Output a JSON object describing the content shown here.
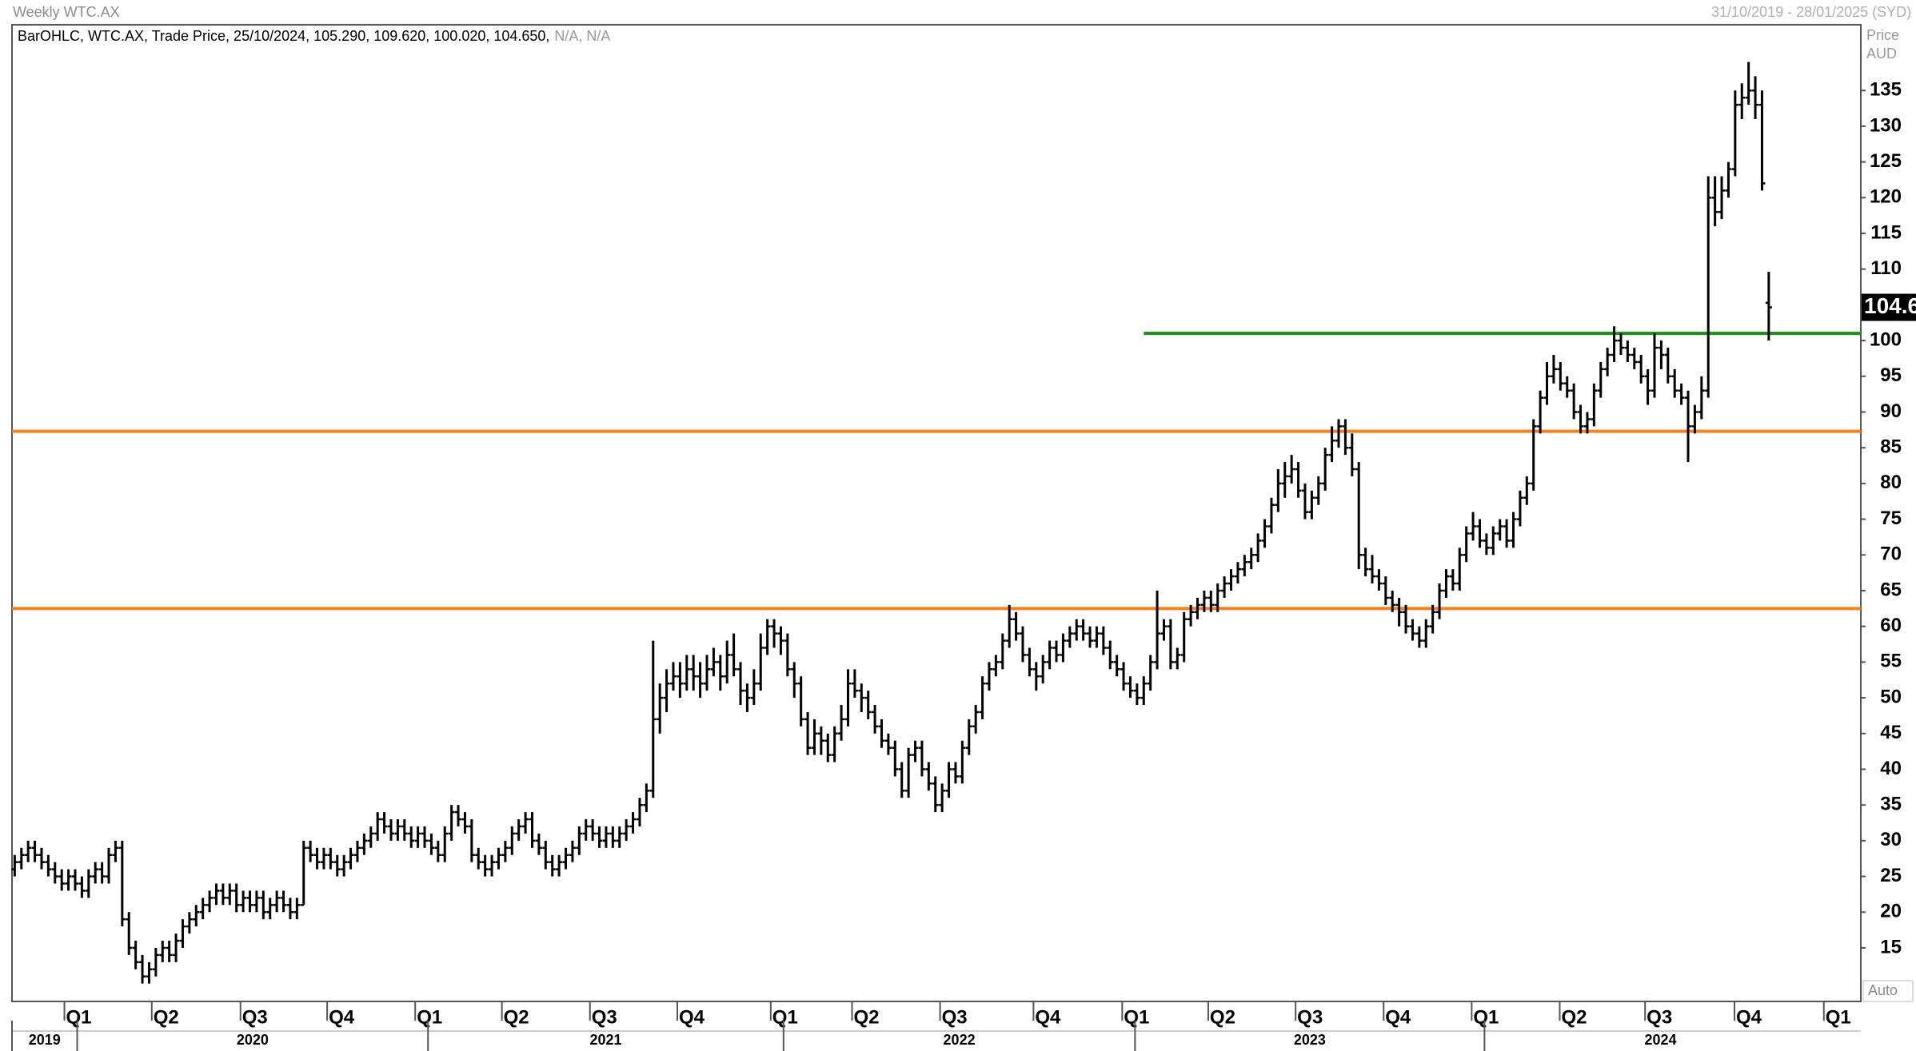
{
  "chart_data": {
    "type": "ohlc",
    "title": "Weekly WTC.AX",
    "date_range": "31/10/2019 - 28/01/2025 (SYD)",
    "legend": "BarOHLC, WTC.AX, Trade Price, 25/10/2024, 105.290, 109.620, 100.020, 104.650,",
    "legend_na": "N/A, N/A",
    "y_axis_label": "Price",
    "y_axis_unit": "AUD",
    "scale_mode": "Auto",
    "color": "#000000",
    "xlim": [
      -0.4,
      274.7
    ],
    "ylim": [
      7.5,
      144.2
    ],
    "yticks": [
      15,
      20,
      25,
      30,
      35,
      40,
      45,
      50,
      55,
      60,
      65,
      70,
      75,
      80,
      85,
      90,
      95,
      100,
      105,
      110,
      115,
      120,
      125,
      130,
      135
    ],
    "xticks": [
      {
        "value": 9.3,
        "label": "Q1"
      },
      {
        "value": 22.3,
        "label": "Q2"
      },
      {
        "value": 35.5,
        "label": "Q3"
      },
      {
        "value": 48.4,
        "label": "Q4"
      },
      {
        "value": 61.5,
        "label": "Q1"
      },
      {
        "value": 74.4,
        "label": "Q2"
      },
      {
        "value": 87.5,
        "label": "Q3"
      },
      {
        "value": 100.5,
        "label": "Q4"
      },
      {
        "value": 114.4,
        "label": "Q1"
      },
      {
        "value": 126.5,
        "label": "Q2"
      },
      {
        "value": 139.6,
        "label": "Q3"
      },
      {
        "value": 153.5,
        "label": "Q4"
      },
      {
        "value": 166.7,
        "label": "Q1"
      },
      {
        "value": 179.5,
        "label": "Q2"
      },
      {
        "value": 192.5,
        "label": "Q3"
      },
      {
        "value": 205.6,
        "label": "Q4"
      },
      {
        "value": 218.7,
        "label": "Q1"
      },
      {
        "value": 231.8,
        "label": "Q2"
      },
      {
        "value": 244.5,
        "label": "Q3"
      },
      {
        "value": 257.8,
        "label": "Q4"
      },
      {
        "value": 271.1,
        "label": "Q1"
      }
    ],
    "year_ticks": [
      {
        "value": -0.4,
        "label": "2019"
      },
      {
        "value": 9.3,
        "label": "2020"
      },
      {
        "value": 61.5,
        "label": "2021"
      },
      {
        "value": 114.4,
        "label": "2022"
      },
      {
        "value": 166.7,
        "label": "2023"
      },
      {
        "value": 218.7,
        "label": "2024"
      }
    ],
    "hlines": [
      {
        "value": 87.3,
        "color": "#f5821f"
      },
      {
        "value": 62.5,
        "color": "#f5821f"
      },
      {
        "value": 101,
        "color": "#1e8c1e",
        "start": 168
      }
    ],
    "ohlc": [
      [
        26,
        28,
        25,
        27
      ],
      [
        27,
        29,
        26,
        28
      ],
      [
        28,
        30,
        27,
        29
      ],
      [
        29,
        30,
        27,
        28
      ],
      [
        28,
        29,
        26,
        27
      ],
      [
        27,
        28,
        25,
        26
      ],
      [
        26,
        27,
        24,
        25
      ],
      [
        25,
        26,
        23,
        24
      ],
      [
        24,
        26,
        23,
        25
      ],
      [
        25,
        26,
        23,
        24
      ],
      [
        24,
        25,
        22,
        23
      ],
      [
        23,
        26,
        22,
        25
      ],
      [
        25,
        27,
        24,
        26
      ],
      [
        26,
        27,
        24,
        25
      ],
      [
        25,
        29,
        24,
        28
      ],
      [
        28,
        30,
        27,
        29
      ],
      [
        29,
        30,
        18,
        19
      ],
      [
        19,
        20,
        14,
        15
      ],
      [
        15,
        16,
        12,
        13
      ],
      [
        13,
        14,
        10,
        11
      ],
      [
        11,
        13,
        10,
        12
      ],
      [
        12,
        15,
        11,
        14
      ],
      [
        14,
        16,
        13,
        15
      ],
      [
        15,
        16,
        13,
        14
      ],
      [
        14,
        17,
        13,
        16
      ],
      [
        16,
        19,
        15,
        18
      ],
      [
        18,
        20,
        17,
        19
      ],
      [
        19,
        21,
        18,
        20
      ],
      [
        20,
        22,
        19,
        21
      ],
      [
        21,
        23,
        20,
        22
      ],
      [
        22,
        24,
        21,
        23
      ],
      [
        23,
        24,
        21,
        22
      ],
      [
        22,
        24,
        21,
        23
      ],
      [
        23,
        24,
        20,
        21
      ],
      [
        21,
        23,
        20,
        22
      ],
      [
        22,
        23,
        20,
        21
      ],
      [
        21,
        23,
        20,
        22
      ],
      [
        22,
        23,
        19,
        20
      ],
      [
        20,
        22,
        19,
        21
      ],
      [
        21,
        23,
        20,
        22
      ],
      [
        22,
        23,
        20,
        21
      ],
      [
        21,
        22,
        19,
        20
      ],
      [
        20,
        22,
        19,
        21
      ],
      [
        21,
        30,
        21,
        29
      ],
      [
        29,
        30,
        27,
        28
      ],
      [
        28,
        29,
        26,
        27
      ],
      [
        27,
        29,
        26,
        28
      ],
      [
        28,
        29,
        26,
        27
      ],
      [
        27,
        28,
        25,
        26
      ],
      [
        26,
        28,
        25,
        27
      ],
      [
        27,
        29,
        26,
        28
      ],
      [
        28,
        30,
        27,
        29
      ],
      [
        29,
        31,
        28,
        30
      ],
      [
        30,
        32,
        29,
        31
      ],
      [
        31,
        34,
        30,
        33
      ],
      [
        33,
        34,
        31,
        32
      ],
      [
        32,
        33,
        30,
        31
      ],
      [
        31,
        33,
        30,
        32
      ],
      [
        32,
        33,
        30,
        31
      ],
      [
        31,
        32,
        29,
        30
      ],
      [
        30,
        32,
        29,
        31
      ],
      [
        31,
        32,
        29,
        30
      ],
      [
        30,
        31,
        28,
        29
      ],
      [
        29,
        30,
        27,
        28
      ],
      [
        28,
        32,
        27,
        31
      ],
      [
        31,
        35,
        30,
        34
      ],
      [
        34,
        35,
        32,
        33
      ],
      [
        33,
        34,
        31,
        32
      ],
      [
        32,
        33,
        27,
        28
      ],
      [
        28,
        29,
        26,
        27
      ],
      [
        27,
        28,
        25,
        26
      ],
      [
        26,
        28,
        25,
        27
      ],
      [
        27,
        29,
        26,
        28
      ],
      [
        28,
        30,
        27,
        29
      ],
      [
        29,
        32,
        28,
        31
      ],
      [
        31,
        33,
        30,
        32
      ],
      [
        32,
        34,
        31,
        33
      ],
      [
        33,
        34,
        29,
        30
      ],
      [
        30,
        31,
        28,
        29
      ],
      [
        29,
        30,
        26,
        27
      ],
      [
        27,
        28,
        25,
        26
      ],
      [
        26,
        28,
        25,
        27
      ],
      [
        27,
        29,
        26,
        28
      ],
      [
        28,
        30,
        27,
        29
      ],
      [
        29,
        32,
        28,
        31
      ],
      [
        31,
        33,
        30,
        32
      ],
      [
        32,
        33,
        30,
        31
      ],
      [
        31,
        32,
        29,
        30
      ],
      [
        30,
        32,
        29,
        31
      ],
      [
        31,
        32,
        29,
        30
      ],
      [
        30,
        32,
        29,
        31
      ],
      [
        31,
        33,
        30,
        32
      ],
      [
        32,
        34,
        31,
        33
      ],
      [
        33,
        36,
        32,
        35
      ],
      [
        35,
        38,
        34,
        37
      ],
      [
        37,
        58,
        36,
        47
      ],
      [
        47,
        52,
        45,
        50
      ],
      [
        50,
        54,
        48,
        52
      ],
      [
        52,
        55,
        51,
        53
      ],
      [
        53,
        55,
        50,
        52
      ],
      [
        52,
        56,
        51,
        54
      ],
      [
        54,
        56,
        51,
        53
      ],
      [
        53,
        55,
        50,
        52
      ],
      [
        52,
        56,
        51,
        54
      ],
      [
        54,
        57,
        53,
        55
      ],
      [
        55,
        56,
        51,
        53
      ],
      [
        53,
        58,
        52,
        56
      ],
      [
        56,
        59,
        53,
        54
      ],
      [
        54,
        55,
        49,
        51
      ],
      [
        51,
        52,
        48,
        50
      ],
      [
        50,
        54,
        49,
        52
      ],
      [
        52,
        59,
        51,
        57
      ],
      [
        57,
        61,
        56,
        60
      ],
      [
        60,
        61,
        57,
        59
      ],
      [
        59,
        60,
        56,
        58
      ],
      [
        58,
        59,
        53,
        54
      ],
      [
        54,
        55,
        50,
        52
      ],
      [
        52,
        53,
        46,
        47
      ],
      [
        47,
        48,
        42,
        43
      ],
      [
        43,
        47,
        42,
        45
      ],
      [
        45,
        46,
        42,
        44
      ],
      [
        44,
        45,
        41,
        42
      ],
      [
        42,
        46,
        41,
        45
      ],
      [
        45,
        49,
        44,
        47
      ],
      [
        47,
        54,
        46,
        52
      ],
      [
        52,
        54,
        50,
        51
      ],
      [
        51,
        52,
        48,
        50
      ],
      [
        50,
        51,
        47,
        48
      ],
      [
        48,
        49,
        45,
        46
      ],
      [
        46,
        47,
        43,
        44
      ],
      [
        44,
        45,
        42,
        43
      ],
      [
        43,
        44,
        39,
        40
      ],
      [
        40,
        41,
        36,
        37
      ],
      [
        37,
        43,
        36,
        42
      ],
      [
        42,
        44,
        41,
        43
      ],
      [
        43,
        44,
        39,
        40
      ],
      [
        40,
        41,
        37,
        38
      ],
      [
        38,
        39,
        34,
        35
      ],
      [
        35,
        38,
        34,
        37
      ],
      [
        37,
        41,
        36,
        40
      ],
      [
        40,
        41,
        38,
        39
      ],
      [
        39,
        44,
        38,
        43
      ],
      [
        43,
        47,
        42,
        46
      ],
      [
        46,
        49,
        45,
        48
      ],
      [
        48,
        53,
        47,
        52
      ],
      [
        52,
        55,
        51,
        54
      ],
      [
        54,
        56,
        53,
        55
      ],
      [
        55,
        59,
        54,
        58
      ],
      [
        58,
        63,
        57,
        61
      ],
      [
        61,
        62,
        58,
        59
      ],
      [
        59,
        60,
        55,
        56
      ],
      [
        56,
        57,
        53,
        54
      ],
      [
        54,
        55,
        51,
        53
      ],
      [
        53,
        56,
        52,
        55
      ],
      [
        55,
        58,
        54,
        57
      ],
      [
        57,
        58,
        55,
        56
      ],
      [
        56,
        59,
        55,
        58
      ],
      [
        58,
        60,
        57,
        59
      ],
      [
        59,
        61,
        58,
        60
      ],
      [
        60,
        61,
        58,
        59
      ],
      [
        59,
        60,
        57,
        58
      ],
      [
        58,
        60,
        57,
        59
      ],
      [
        59,
        60,
        56,
        57
      ],
      [
        57,
        58,
        54,
        55
      ],
      [
        55,
        56,
        53,
        54
      ],
      [
        54,
        55,
        51,
        52
      ],
      [
        52,
        53,
        50,
        51
      ],
      [
        51,
        52,
        49,
        50
      ],
      [
        50,
        53,
        49,
        52
      ],
      [
        52,
        56,
        51,
        55
      ],
      [
        55,
        65,
        54,
        59
      ],
      [
        59,
        61,
        58,
        60
      ],
      [
        60,
        61,
        54,
        55
      ],
      [
        55,
        57,
        54,
        56
      ],
      [
        56,
        62,
        55,
        61
      ],
      [
        61,
        63,
        60,
        62
      ],
      [
        62,
        64,
        61,
        63
      ],
      [
        63,
        65,
        62,
        64
      ],
      [
        64,
        65,
        62,
        63
      ],
      [
        63,
        66,
        62,
        65
      ],
      [
        65,
        67,
        64,
        66
      ],
      [
        66,
        68,
        65,
        67
      ],
      [
        67,
        69,
        66,
        68
      ],
      [
        68,
        70,
        67,
        69
      ],
      [
        69,
        71,
        68,
        70
      ],
      [
        70,
        73,
        69,
        72
      ],
      [
        72,
        75,
        71,
        74
      ],
      [
        74,
        78,
        73,
        77
      ],
      [
        77,
        82,
        76,
        80
      ],
      [
        80,
        83,
        78,
        81
      ],
      [
        81,
        84,
        80,
        82
      ],
      [
        82,
        83,
        78,
        79
      ],
      [
        79,
        80,
        75,
        76
      ],
      [
        76,
        79,
        75,
        78
      ],
      [
        78,
        81,
        77,
        80
      ],
      [
        80,
        85,
        79,
        84
      ],
      [
        84,
        88,
        83,
        86
      ],
      [
        86,
        89,
        85,
        88
      ],
      [
        88,
        89,
        84,
        85
      ],
      [
        85,
        87,
        81,
        82
      ],
      [
        82,
        83,
        68,
        70
      ],
      [
        70,
        71,
        67,
        68
      ],
      [
        68,
        70,
        66,
        67
      ],
      [
        67,
        68,
        65,
        66
      ],
      [
        66,
        67,
        63,
        64
      ],
      [
        64,
        65,
        62,
        63
      ],
      [
        63,
        64,
        60,
        62
      ],
      [
        62,
        63,
        59,
        60
      ],
      [
        60,
        61,
        58,
        59
      ],
      [
        59,
        60,
        57,
        58
      ],
      [
        58,
        61,
        57,
        60
      ],
      [
        60,
        63,
        59,
        62
      ],
      [
        62,
        66,
        61,
        65
      ],
      [
        65,
        68,
        64,
        67
      ],
      [
        67,
        68,
        65,
        66
      ],
      [
        66,
        71,
        65,
        70
      ],
      [
        70,
        74,
        69,
        73
      ],
      [
        73,
        76,
        72,
        74
      ],
      [
        74,
        75,
        71,
        72
      ],
      [
        72,
        73,
        70,
        71
      ],
      [
        71,
        74,
        70,
        73
      ],
      [
        73,
        75,
        72,
        74
      ],
      [
        74,
        75,
        71,
        72
      ],
      [
        72,
        76,
        71,
        75
      ],
      [
        75,
        79,
        74,
        78
      ],
      [
        78,
        81,
        77,
        80
      ],
      [
        80,
        89,
        79,
        88
      ],
      [
        88,
        93,
        87,
        92
      ],
      [
        92,
        97,
        91,
        95
      ],
      [
        95,
        98,
        94,
        96
      ],
      [
        96,
        97,
        93,
        94
      ],
      [
        94,
        95,
        92,
        93
      ],
      [
        93,
        94,
        89,
        90
      ],
      [
        90,
        91,
        87,
        88
      ],
      [
        88,
        90,
        87,
        89
      ],
      [
        89,
        94,
        88,
        93
      ],
      [
        93,
        97,
        92,
        96
      ],
      [
        96,
        99,
        95,
        98
      ],
      [
        98,
        102,
        97,
        100
      ],
      [
        100,
        101,
        98,
        99
      ],
      [
        99,
        100,
        97,
        98
      ],
      [
        98,
        99,
        96,
        97
      ],
      [
        97,
        98,
        94,
        95
      ],
      [
        95,
        96,
        91,
        93
      ],
      [
        93,
        101,
        92,
        99
      ],
      [
        99,
        100,
        96,
        98
      ],
      [
        98,
        99,
        94,
        95
      ],
      [
        95,
        96,
        92,
        93
      ],
      [
        93,
        94,
        91,
        92
      ],
      [
        92,
        93,
        83,
        88
      ],
      [
        88,
        91,
        87,
        90
      ],
      [
        90,
        95,
        89,
        93
      ],
      [
        93,
        123,
        92,
        120
      ],
      [
        120,
        123,
        116,
        118
      ],
      [
        118,
        123,
        117,
        121
      ],
      [
        121,
        125,
        120,
        124
      ],
      [
        124,
        135,
        123,
        133
      ],
      [
        133,
        136,
        131,
        134
      ],
      [
        134,
        139,
        133,
        135
      ],
      [
        135,
        137,
        131,
        133
      ],
      [
        133,
        135,
        121,
        122
      ],
      [
        105.29,
        109.62,
        100.02,
        104.65
      ]
    ]
  }
}
